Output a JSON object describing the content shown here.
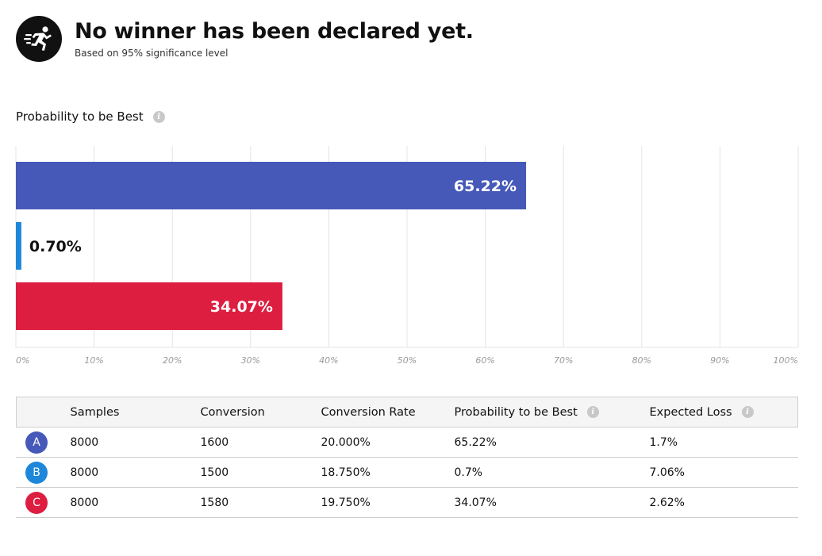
{
  "header": {
    "title": "No winner has been declared yet.",
    "subtitle": "Based on 95% significance level",
    "icon": "runner-icon"
  },
  "chart_heading": "Probability to be Best",
  "colors": {
    "A": "#4659b9",
    "B": "#1f87d9",
    "C": "#dd1e40",
    "grid": "#e4e4e4",
    "tick": "#9a9a9a"
  },
  "chart_data": {
    "type": "bar",
    "orientation": "horizontal",
    "title": "Probability to be Best",
    "categories": [
      "A",
      "B",
      "C"
    ],
    "values": [
      65.22,
      0.7,
      34.07
    ],
    "data_labels": [
      "65.22%",
      "0.70%",
      "34.07%"
    ],
    "xlim": [
      0,
      100
    ],
    "x_ticks": [
      "0%",
      "10%",
      "20%",
      "30%",
      "40%",
      "50%",
      "60%",
      "70%",
      "80%",
      "90%",
      "100%"
    ],
    "grid": true
  },
  "table": {
    "headers": [
      "",
      "Samples",
      "Conversion",
      "Conversion Rate",
      "Probability to be Best",
      "Expected Loss"
    ],
    "rows": [
      {
        "variant": "A",
        "samples": "8000",
        "conversion": "1600",
        "rate": "20.000%",
        "prob": "65.22%",
        "loss": "1.7%"
      },
      {
        "variant": "B",
        "samples": "8000",
        "conversion": "1500",
        "rate": "18.750%",
        "prob": "0.7%",
        "loss": "7.06%"
      },
      {
        "variant": "C",
        "samples": "8000",
        "conversion": "1580",
        "rate": "19.750%",
        "prob": "34.07%",
        "loss": "2.62%"
      }
    ]
  }
}
